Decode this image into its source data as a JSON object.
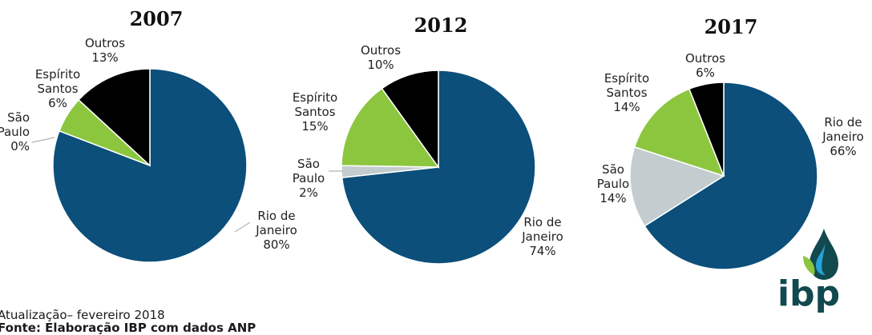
{
  "chart_data": [
    {
      "type": "pie",
      "title": "2007",
      "labels": [
        "Rio de Janeiro",
        "São Paulo",
        "Espírito Santos",
        "Outros"
      ],
      "values": [
        80,
        0,
        6,
        13
      ],
      "value_labels": [
        "80%",
        "0%",
        "6%",
        "13%"
      ],
      "label_lines": [
        [
          "Rio de",
          "Janeiro",
          "80%"
        ],
        [
          "São",
          "Paulo",
          "0%"
        ],
        [
          "Espírito",
          "Santos",
          "6%"
        ],
        [
          "Outros",
          "13%"
        ]
      ]
    },
    {
      "type": "pie",
      "title": "2012",
      "labels": [
        "Rio de Janeiro",
        "São Paulo",
        "Espírito Santos",
        "Outros"
      ],
      "values": [
        74,
        2,
        15,
        10
      ],
      "value_labels": [
        "74%",
        "2%",
        "15%",
        "10%"
      ],
      "label_lines": [
        [
          "Rio de",
          "Janeiro",
          "74%"
        ],
        [
          "São",
          "Paulo",
          "2%"
        ],
        [
          "Espírito",
          "Santos",
          "15%"
        ],
        [
          "Outros",
          "10%"
        ]
      ]
    },
    {
      "type": "pie",
      "title": "2017",
      "labels": [
        "Rio de Janeiro",
        "São Paulo",
        "Espírito Santos",
        "Outros"
      ],
      "values": [
        66,
        14,
        14,
        6
      ],
      "value_labels": [
        "66%",
        "14%",
        "14%",
        "6%"
      ],
      "label_lines": [
        [
          "Rio de",
          "Janeiro",
          "66%"
        ],
        [
          "São",
          "Paulo",
          "14%"
        ],
        [
          "Espírito",
          "Santos",
          "14%"
        ],
        [
          "Outros",
          "6%"
        ]
      ]
    }
  ],
  "colors": {
    "Rio de Janeiro": "#0b4f7a",
    "São Paulo": "#c3ccce",
    "Espírito Santos": "#8cc63f",
    "Outros": "#000000"
  },
  "footer": {
    "update": "Atualização– fevereiro 2018",
    "source": "Fonte: Elaboração IBP com dados ANP"
  },
  "logo": {
    "text": "ibp",
    "colors": {
      "drop_outer": "#11494f",
      "drop_inner": "#27a3d6",
      "leaf": "#8cc63f"
    }
  }
}
